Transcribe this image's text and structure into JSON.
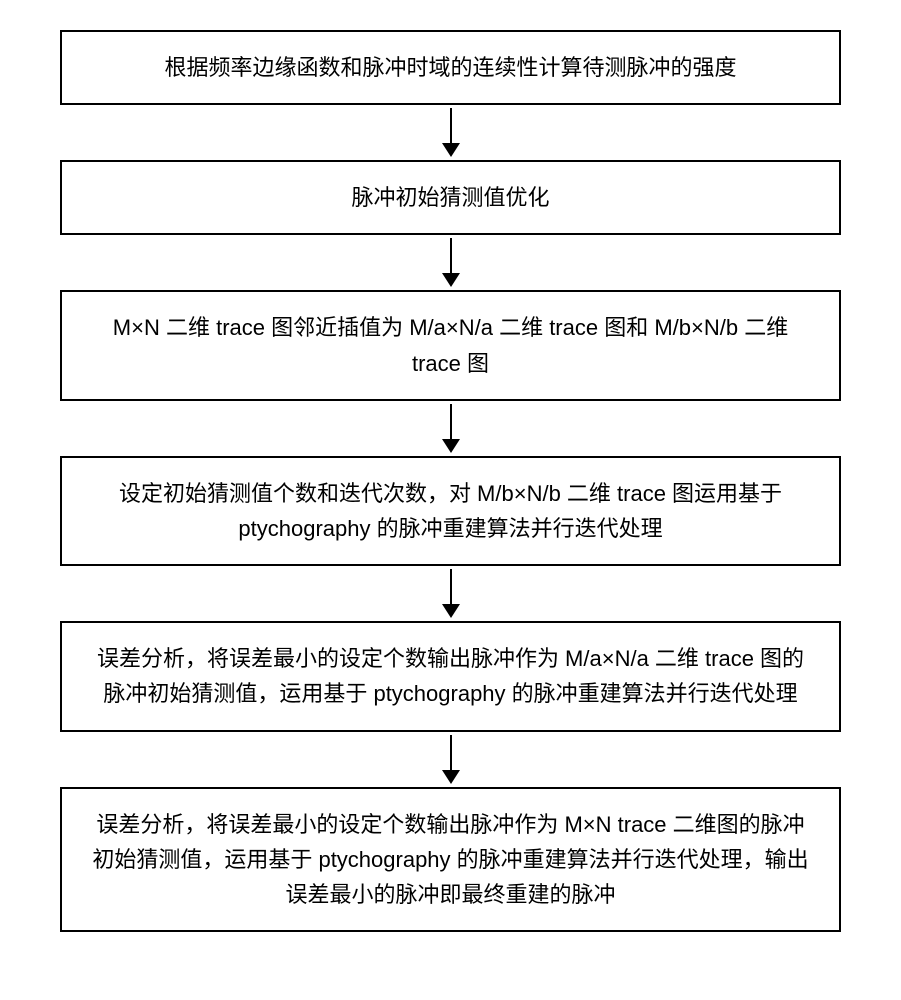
{
  "flowchart": {
    "type": "flowchart",
    "orientation": "vertical",
    "background_color": "#ffffff",
    "box_border_color": "#000000",
    "box_border_width": 2,
    "box_background_color": "#ffffff",
    "text_color": "#000000",
    "font_size": 22,
    "line_height": 1.6,
    "arrow_color": "#000000",
    "arrow_line_width": 2,
    "arrow_line_height": 35,
    "arrow_head_width": 18,
    "arrow_head_height": 14,
    "box_padding_vertical": 18,
    "box_padding_horizontal": 24,
    "spacing": 55,
    "nodes": [
      {
        "id": "step1",
        "text": "根据频率边缘函数和脉冲时域的连续性计算待测脉冲的强度"
      },
      {
        "id": "step2",
        "text": "脉冲初始猜测值优化"
      },
      {
        "id": "step3",
        "text": "M×N 二维 trace 图邻近插值为 M/a×N/a 二维 trace 图和 M/b×N/b 二维 trace 图"
      },
      {
        "id": "step4",
        "text": "设定初始猜测值个数和迭代次数，对 M/b×N/b 二维 trace 图运用基于 ptychography 的脉冲重建算法并行迭代处理"
      },
      {
        "id": "step5",
        "text": "误差分析，将误差最小的设定个数输出脉冲作为 M/a×N/a 二维 trace 图的脉冲初始猜测值，运用基于 ptychography 的脉冲重建算法并行迭代处理"
      },
      {
        "id": "step6",
        "text": "误差分析，将误差最小的设定个数输出脉冲作为 M×N trace 二维图的脉冲初始猜测值，运用基于 ptychography 的脉冲重建算法并行迭代处理，输出误差最小的脉冲即最终重建的脉冲"
      }
    ],
    "edges": [
      {
        "from": "step1",
        "to": "step2"
      },
      {
        "from": "step2",
        "to": "step3"
      },
      {
        "from": "step3",
        "to": "step4"
      },
      {
        "from": "step4",
        "to": "step5"
      },
      {
        "from": "step5",
        "to": "step6"
      }
    ]
  }
}
